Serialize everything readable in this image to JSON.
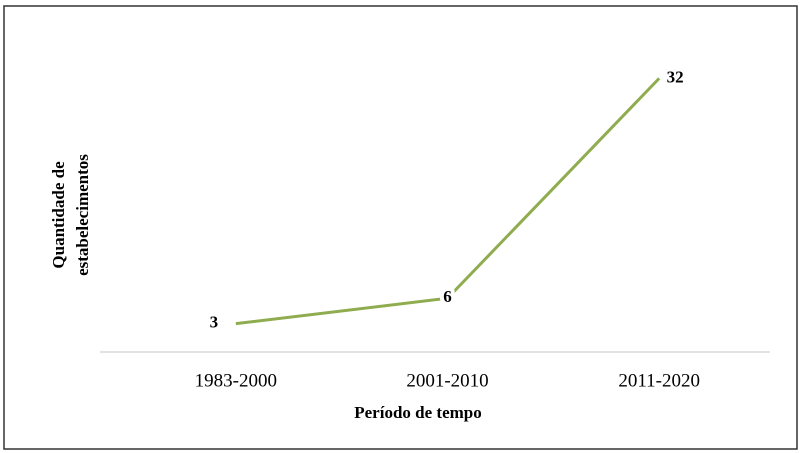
{
  "chart_data": {
    "type": "line",
    "x_label": "Período de tempo",
    "y_label": [
      "Quantidade de",
      "estabelecimentos"
    ],
    "categories": [
      "1983-2000",
      "2001-2010",
      "2011-2020"
    ],
    "series": [
      {
        "name": "Quantidade de estabelecimentos",
        "color": "#8fac4f",
        "values": [
          3,
          6,
          32
        ]
      }
    ],
    "ylim": [
      0,
      35
    ]
  }
}
